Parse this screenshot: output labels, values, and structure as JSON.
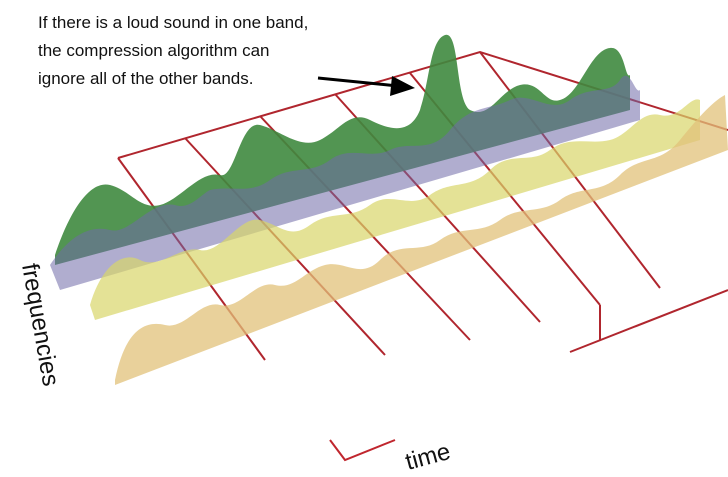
{
  "annotation": {
    "lines": [
      "If there is a loud sound in one band,",
      "the compression algorithm can",
      "ignore all of the other bands."
    ]
  },
  "axes": {
    "frequency_label": "frequencies",
    "time_label": "time"
  }
}
